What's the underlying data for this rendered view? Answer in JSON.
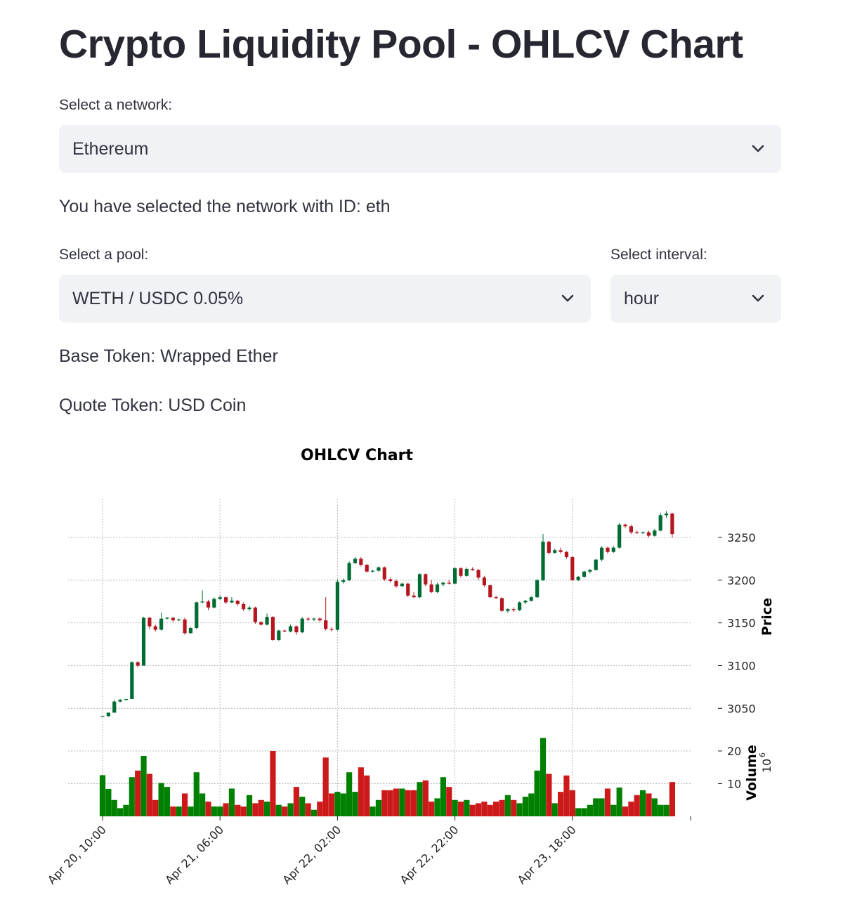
{
  "page": {
    "title": "Crypto Liquidity Pool - OHLCV Chart"
  },
  "network": {
    "label": "Select a network:",
    "value": "Ethereum",
    "selected_text": "You have selected the network with ID: eth"
  },
  "pool": {
    "label": "Select a pool:",
    "value": "WETH / USDC 0.05%"
  },
  "interval": {
    "label": "Select interval:",
    "value": "hour"
  },
  "tokens": {
    "base": "Base Token: Wrapped Ether",
    "quote": "Quote Token: USD Coin"
  },
  "icons": {
    "dropdown": "chevron-down-icon"
  },
  "colors": {
    "up": "#006b32",
    "down": "#b5161f",
    "vol_up": "#008000",
    "vol_down": "#cc1a1a",
    "select_bg": "#f0f2f6"
  },
  "chart_data": {
    "type": "candlestick",
    "title": "OHLCV Chart",
    "price_label": "Price",
    "volume_label": "Volume",
    "volume_multiplier": "10",
    "volume_exponent": "6",
    "x_tick_labels": [
      "Apr 20, 10:00",
      "Apr 21, 06:00",
      "Apr 22, 02:00",
      "Apr 22, 22:00",
      "Apr 23, 18:00"
    ],
    "x_tick_index": [
      0,
      20,
      40,
      60,
      80
    ],
    "price_ticks": [
      3050,
      3100,
      3150,
      3200,
      3250
    ],
    "volume_ticks": [
      10,
      20
    ],
    "price_range": [
      3030,
      3290
    ],
    "volume_range": [
      0,
      25
    ],
    "grid": true,
    "candles": [
      {
        "o": 3040,
        "h": 3041,
        "l": 3040,
        "c": 3041,
        "v": 12.6
      },
      {
        "o": 3041,
        "h": 3045,
        "l": 3040,
        "c": 3045,
        "v": 8.4
      },
      {
        "o": 3045,
        "h": 3060,
        "l": 3045,
        "c": 3058,
        "v": 5.0
      },
      {
        "o": 3058,
        "h": 3061,
        "l": 3057,
        "c": 3060,
        "v": 2.5
      },
      {
        "o": 3060,
        "h": 3061,
        "l": 3059,
        "c": 3061,
        "v": 3.5
      },
      {
        "o": 3061,
        "h": 3105,
        "l": 3061,
        "c": 3104,
        "v": 12.0
      },
      {
        "o": 3104,
        "h": 3105,
        "l": 3098,
        "c": 3100,
        "v": 14.0
      },
      {
        "o": 3100,
        "h": 3157,
        "l": 3100,
        "c": 3156,
        "v": 18.5
      },
      {
        "o": 3156,
        "h": 3157,
        "l": 3143,
        "c": 3146,
        "v": 13.0
      },
      {
        "o": 3146,
        "h": 3148,
        "l": 3140,
        "c": 3142,
        "v": 5.0
      },
      {
        "o": 3142,
        "h": 3162,
        "l": 3141,
        "c": 3155,
        "v": 10.2
      },
      {
        "o": 3155,
        "h": 3157,
        "l": 3154,
        "c": 3156,
        "v": 9.0
      },
      {
        "o": 3156,
        "h": 3157,
        "l": 3151,
        "c": 3153,
        "v": 3.0
      },
      {
        "o": 3153,
        "h": 3155,
        "l": 3152,
        "c": 3154,
        "v": 3.0
      },
      {
        "o": 3154,
        "h": 3156,
        "l": 3136,
        "c": 3138,
        "v": 7.0
      },
      {
        "o": 3138,
        "h": 3145,
        "l": 3137,
        "c": 3144,
        "v": 3.0
      },
      {
        "o": 3144,
        "h": 3175,
        "l": 3143,
        "c": 3174,
        "v": 13.5
      },
      {
        "o": 3174,
        "h": 3188,
        "l": 3173,
        "c": 3175,
        "v": 7.0
      },
      {
        "o": 3175,
        "h": 3177,
        "l": 3165,
        "c": 3168,
        "v": 4.5
      },
      {
        "o": 3168,
        "h": 3180,
        "l": 3167,
        "c": 3178,
        "v": 3.0
      },
      {
        "o": 3178,
        "h": 3182,
        "l": 3177,
        "c": 3180,
        "v": 3.0
      },
      {
        "o": 3180,
        "h": 3181,
        "l": 3172,
        "c": 3174,
        "v": 4.0
      },
      {
        "o": 3174,
        "h": 3180,
        "l": 3173,
        "c": 3176,
        "v": 8.5
      },
      {
        "o": 3176,
        "h": 3177,
        "l": 3170,
        "c": 3172,
        "v": 3.5
      },
      {
        "o": 3172,
        "h": 3174,
        "l": 3164,
        "c": 3166,
        "v": 3.0
      },
      {
        "o": 3166,
        "h": 3170,
        "l": 3164,
        "c": 3168,
        "v": 6.5
      },
      {
        "o": 3168,
        "h": 3169,
        "l": 3149,
        "c": 3151,
        "v": 4.0
      },
      {
        "o": 3151,
        "h": 3152,
        "l": 3147,
        "c": 3148,
        "v": 5.0
      },
      {
        "o": 3148,
        "h": 3161,
        "l": 3147,
        "c": 3157,
        "v": 4.5
      },
      {
        "o": 3157,
        "h": 3158,
        "l": 3129,
        "c": 3130,
        "v": 20.0
      },
      {
        "o": 3130,
        "h": 3142,
        "l": 3129,
        "c": 3141,
        "v": 3.5
      },
      {
        "o": 3141,
        "h": 3142,
        "l": 3139,
        "c": 3140,
        "v": 3.0
      },
      {
        "o": 3140,
        "h": 3148,
        "l": 3139,
        "c": 3146,
        "v": 4.0
      },
      {
        "o": 3146,
        "h": 3147,
        "l": 3136,
        "c": 3139,
        "v": 9.0
      },
      {
        "o": 3139,
        "h": 3157,
        "l": 3138,
        "c": 3155,
        "v": 6.0
      },
      {
        "o": 3155,
        "h": 3157,
        "l": 3152,
        "c": 3154,
        "v": 4.0
      },
      {
        "o": 3154,
        "h": 3156,
        "l": 3152,
        "c": 3155,
        "v": 2.0
      },
      {
        "o": 3155,
        "h": 3157,
        "l": 3151,
        "c": 3153,
        "v": 4.5
      },
      {
        "o": 3153,
        "h": 3180,
        "l": 3141,
        "c": 3143,
        "v": 18.0
      },
      {
        "o": 3143,
        "h": 3145,
        "l": 3140,
        "c": 3142,
        "v": 7.0
      },
      {
        "o": 3142,
        "h": 3201,
        "l": 3141,
        "c": 3198,
        "v": 7.5
      },
      {
        "o": 3198,
        "h": 3202,
        "l": 3196,
        "c": 3200,
        "v": 7.0
      },
      {
        "o": 3200,
        "h": 3222,
        "l": 3199,
        "c": 3220,
        "v": 13.5
      },
      {
        "o": 3220,
        "h": 3227,
        "l": 3219,
        "c": 3225,
        "v": 7.5
      },
      {
        "o": 3225,
        "h": 3227,
        "l": 3216,
        "c": 3218,
        "v": 15.0
      },
      {
        "o": 3218,
        "h": 3219,
        "l": 3209,
        "c": 3210,
        "v": 12.5
      },
      {
        "o": 3210,
        "h": 3212,
        "l": 3209,
        "c": 3211,
        "v": 3.0
      },
      {
        "o": 3211,
        "h": 3216,
        "l": 3210,
        "c": 3215,
        "v": 5.0
      },
      {
        "o": 3215,
        "h": 3216,
        "l": 3199,
        "c": 3201,
        "v": 8.0
      },
      {
        "o": 3201,
        "h": 3203,
        "l": 3197,
        "c": 3199,
        "v": 8.0
      },
      {
        "o": 3199,
        "h": 3201,
        "l": 3191,
        "c": 3193,
        "v": 8.5
      },
      {
        "o": 3193,
        "h": 3197,
        "l": 3192,
        "c": 3196,
        "v": 8.5
      },
      {
        "o": 3196,
        "h": 3197,
        "l": 3180,
        "c": 3182,
        "v": 8.0
      },
      {
        "o": 3182,
        "h": 3186,
        "l": 3179,
        "c": 3180,
        "v": 8.0
      },
      {
        "o": 3180,
        "h": 3208,
        "l": 3179,
        "c": 3207,
        "v": 10.5
      },
      {
        "o": 3207,
        "h": 3208,
        "l": 3193,
        "c": 3195,
        "v": 11.0
      },
      {
        "o": 3195,
        "h": 3200,
        "l": 3185,
        "c": 3186,
        "v": 4.5
      },
      {
        "o": 3186,
        "h": 3197,
        "l": 3185,
        "c": 3195,
        "v": 5.5
      },
      {
        "o": 3195,
        "h": 3198,
        "l": 3193,
        "c": 3197,
        "v": 12.0
      },
      {
        "o": 3197,
        "h": 3200,
        "l": 3195,
        "c": 3196,
        "v": 9.0
      },
      {
        "o": 3196,
        "h": 3215,
        "l": 3195,
        "c": 3214,
        "v": 5.0
      },
      {
        "o": 3214,
        "h": 3215,
        "l": 3203,
        "c": 3205,
        "v": 4.5
      },
      {
        "o": 3205,
        "h": 3215,
        "l": 3204,
        "c": 3213,
        "v": 5.0
      },
      {
        "o": 3213,
        "h": 3215,
        "l": 3211,
        "c": 3212,
        "v": 3.5
      },
      {
        "o": 3212,
        "h": 3213,
        "l": 3200,
        "c": 3203,
        "v": 4.0
      },
      {
        "o": 3203,
        "h": 3205,
        "l": 3192,
        "c": 3194,
        "v": 4.5
      },
      {
        "o": 3194,
        "h": 3195,
        "l": 3179,
        "c": 3180,
        "v": 3.5
      },
      {
        "o": 3180,
        "h": 3182,
        "l": 3178,
        "c": 3179,
        "v": 4.5
      },
      {
        "o": 3179,
        "h": 3180,
        "l": 3163,
        "c": 3164,
        "v": 5.0
      },
      {
        "o": 3164,
        "h": 3167,
        "l": 3162,
        "c": 3166,
        "v": 6.5
      },
      {
        "o": 3166,
        "h": 3168,
        "l": 3163,
        "c": 3165,
        "v": 5.0
      },
      {
        "o": 3165,
        "h": 3175,
        "l": 3164,
        "c": 3174,
        "v": 4.0
      },
      {
        "o": 3174,
        "h": 3177,
        "l": 3172,
        "c": 3176,
        "v": 6.0
      },
      {
        "o": 3176,
        "h": 3181,
        "l": 3175,
        "c": 3180,
        "v": 7.0
      },
      {
        "o": 3180,
        "h": 3201,
        "l": 3179,
        "c": 3200,
        "v": 14.0
      },
      {
        "o": 3200,
        "h": 3254,
        "l": 3199,
        "c": 3245,
        "v": 24.0
      },
      {
        "o": 3245,
        "h": 3246,
        "l": 3230,
        "c": 3232,
        "v": 13.0
      },
      {
        "o": 3232,
        "h": 3237,
        "l": 3231,
        "c": 3235,
        "v": 4.0
      },
      {
        "o": 3235,
        "h": 3238,
        "l": 3231,
        "c": 3233,
        "v": 7.5
      },
      {
        "o": 3233,
        "h": 3234,
        "l": 3225,
        "c": 3227,
        "v": 12.5
      },
      {
        "o": 3227,
        "h": 3228,
        "l": 3199,
        "c": 3200,
        "v": 8.0
      },
      {
        "o": 3200,
        "h": 3205,
        "l": 3199,
        "c": 3204,
        "v": 2.5
      },
      {
        "o": 3204,
        "h": 3211,
        "l": 3203,
        "c": 3210,
        "v": 2.5
      },
      {
        "o": 3210,
        "h": 3213,
        "l": 3208,
        "c": 3212,
        "v": 3.5
      },
      {
        "o": 3212,
        "h": 3225,
        "l": 3211,
        "c": 3224,
        "v": 5.5
      },
      {
        "o": 3224,
        "h": 3240,
        "l": 3222,
        "c": 3238,
        "v": 5.5
      },
      {
        "o": 3238,
        "h": 3239,
        "l": 3231,
        "c": 3233,
        "v": 8.5
      },
      {
        "o": 3233,
        "h": 3240,
        "l": 3232,
        "c": 3238,
        "v": 3.5
      },
      {
        "o": 3238,
        "h": 3267,
        "l": 3237,
        "c": 3265,
        "v": 8.8
      },
      {
        "o": 3265,
        "h": 3266,
        "l": 3261,
        "c": 3263,
        "v": 3.0
      },
      {
        "o": 3263,
        "h": 3265,
        "l": 3254,
        "c": 3256,
        "v": 4.5
      },
      {
        "o": 3256,
        "h": 3258,
        "l": 3254,
        "c": 3255,
        "v": 6.5
      },
      {
        "o": 3255,
        "h": 3257,
        "l": 3254,
        "c": 3256,
        "v": 8.0
      },
      {
        "o": 3256,
        "h": 3258,
        "l": 3250,
        "c": 3252,
        "v": 7.0
      },
      {
        "o": 3252,
        "h": 3260,
        "l": 3251,
        "c": 3258,
        "v": 5.5
      },
      {
        "o": 3258,
        "h": 3279,
        "l": 3257,
        "c": 3276,
        "v": 3.5
      },
      {
        "o": 3276,
        "h": 3281,
        "l": 3273,
        "c": 3278,
        "v": 3.5
      },
      {
        "o": 3278,
        "h": 3279,
        "l": 3250,
        "c": 3254,
        "v": 10.5
      }
    ]
  }
}
